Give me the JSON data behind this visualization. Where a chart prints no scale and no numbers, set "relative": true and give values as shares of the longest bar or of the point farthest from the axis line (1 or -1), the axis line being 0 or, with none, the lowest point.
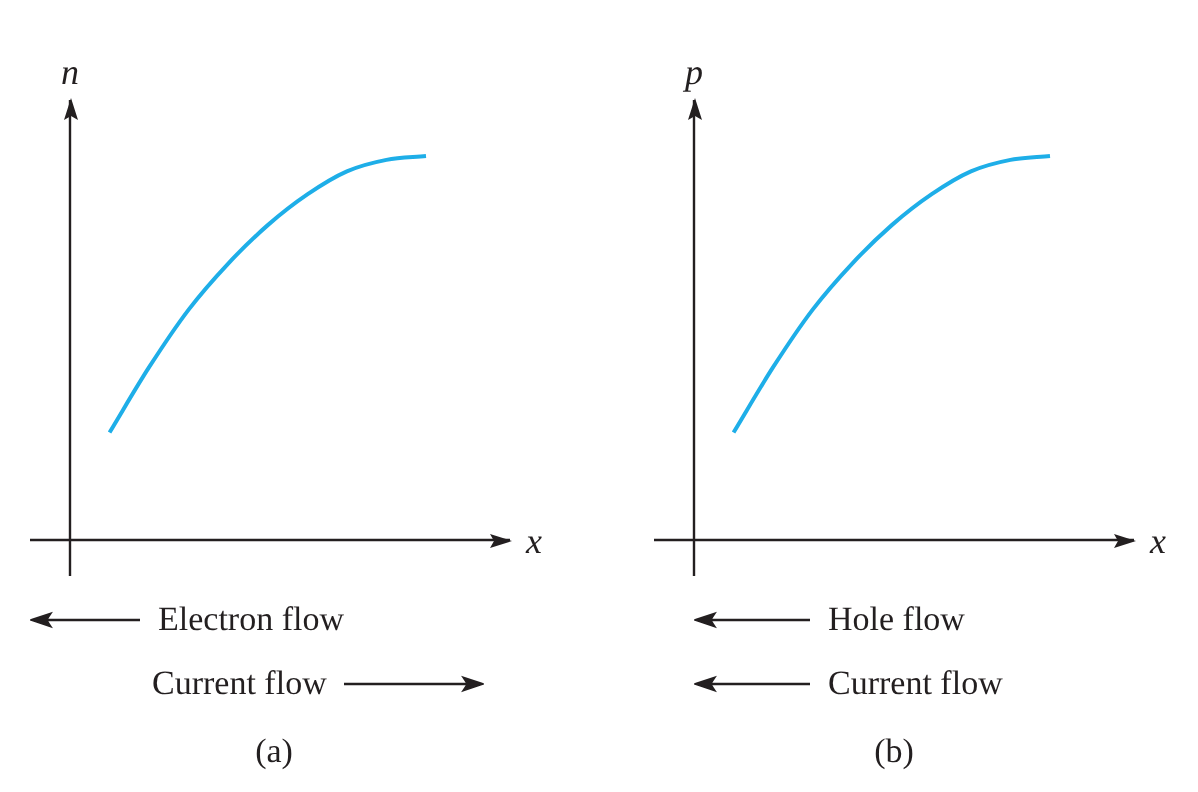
{
  "chart_data": [
    {
      "type": "line",
      "title": "(a)",
      "xlabel": "x",
      "ylabel": "n",
      "relative": true,
      "categories": [
        null,
        null,
        null,
        null,
        null,
        null,
        null,
        null,
        null,
        null
      ],
      "series": [
        {
          "color": "#1eaee8",
          "values": [
            null,
            0.28,
            0.45,
            0.6,
            0.72,
            0.82,
            0.9,
            0.96,
            0.99,
            1
          ]
        }
      ],
      "annotations": [
        "Electron flow",
        "Current flow"
      ]
    },
    {
      "type": "line",
      "title": "(b)",
      "xlabel": "x",
      "ylabel": "p",
      "relative": true,
      "categories": [
        null,
        null,
        null,
        null,
        null,
        null,
        null,
        null,
        null,
        null
      ],
      "series": [
        {
          "color": "#1eaee8",
          "values": [
            null,
            0.28,
            0.45,
            0.6,
            0.72,
            0.82,
            0.9,
            0.96,
            0.99,
            1
          ]
        }
      ],
      "annotations": [
        "Hole flow",
        "Current flow"
      ]
    }
  ]
}
